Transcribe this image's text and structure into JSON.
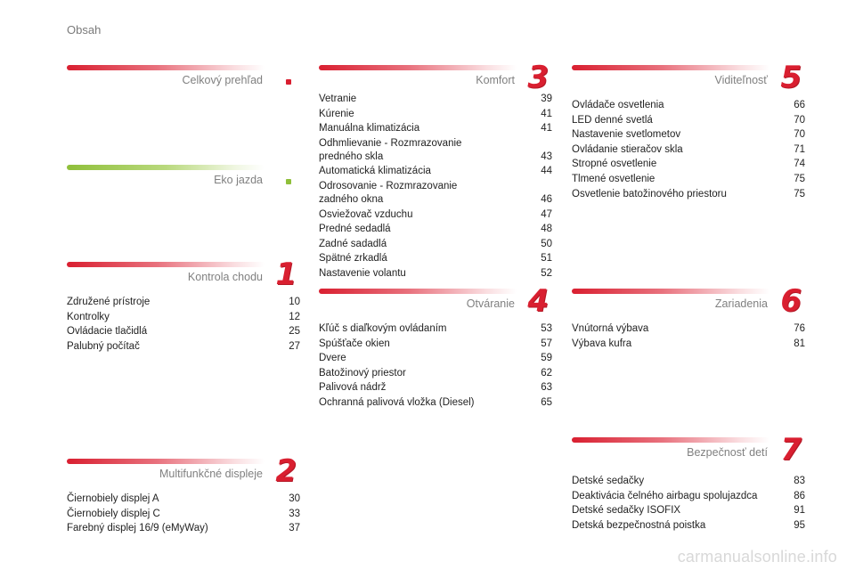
{
  "page_title": "Obsah",
  "watermark": "carmanualsonline.info",
  "colors": {
    "accent_red": "#d91f30",
    "accent_green": "#8fbf3a"
  },
  "sections": {
    "celkovy": {
      "title": "Celkový prehľad",
      "number": "",
      "entries": []
    },
    "eko": {
      "title": "Eko jazda",
      "number": "",
      "entries": []
    },
    "kontrola": {
      "title": "Kontrola chodu",
      "number": "1",
      "entries": [
        {
          "label": "Združené prístroje",
          "page": "10"
        },
        {
          "label": "Kontrolky",
          "page": "12"
        },
        {
          "label": "Ovládacie tlačidlá",
          "page": "25"
        },
        {
          "label": "Palubný počítač",
          "page": "27"
        }
      ]
    },
    "multifunkcne": {
      "title": "Multifunkčné displeje",
      "number": "2",
      "entries": [
        {
          "label": "Čiernobiely displej A",
          "page": "30"
        },
        {
          "label": "Čiernobiely displej C",
          "page": "33"
        },
        {
          "label": "Farebný displej 16/9 (eMyWay)",
          "page": "37"
        }
      ]
    },
    "komfort": {
      "title": "Komfort",
      "number": "3",
      "entries": [
        {
          "label": "Vetranie",
          "page": "39"
        },
        {
          "label": "Kúrenie",
          "page": "41"
        },
        {
          "label": "Manuálna klimatizácia",
          "page": "41"
        },
        {
          "label": "Odhmlievanie - Rozmrazovanie\n    predného skla",
          "page": "43"
        },
        {
          "label": "Automatická klimatizácia",
          "page": "44"
        },
        {
          "label": "Odrosovanie - Rozmrazovanie\n    zadného okna",
          "page": "46"
        },
        {
          "label": "Osviežovač vzduchu",
          "page": "47"
        },
        {
          "label": "Predné sedadlá",
          "page": "48"
        },
        {
          "label": "Zadné sadadlá",
          "page": "50"
        },
        {
          "label": "Spätné zrkadlá",
          "page": "51"
        },
        {
          "label": "Nastavenie volantu",
          "page": "52"
        }
      ]
    },
    "otvaranie": {
      "title": "Otváranie",
      "number": "4",
      "entries": [
        {
          "label": "Kľúč s diaľkovým ovládaním",
          "page": "53"
        },
        {
          "label": "Spúšťače okien",
          "page": "57"
        },
        {
          "label": "Dvere",
          "page": "59"
        },
        {
          "label": "Batožinový priestor",
          "page": "62"
        },
        {
          "label": "Palivová nádrž",
          "page": "63"
        },
        {
          "label": "Ochranná palivová vložka (Diesel)",
          "page": "65"
        }
      ]
    },
    "viditelnost": {
      "title": "Viditeľnosť",
      "number": "5",
      "entries": [
        {
          "label": "Ovládače osvetlenia",
          "page": "66"
        },
        {
          "label": "LED denné svetlá",
          "page": "70"
        },
        {
          "label": "Nastavenie svetlometov",
          "page": "70"
        },
        {
          "label": "Ovládanie stieračov skla",
          "page": "71"
        },
        {
          "label": "Stropné osvetlenie",
          "page": "74"
        },
        {
          "label": "Tlmené osvetlenie",
          "page": "75"
        },
        {
          "label": "Osvetlenie batožinového priestoru",
          "page": "75"
        }
      ]
    },
    "zariadenia": {
      "title": "Zariadenia",
      "number": "6",
      "entries": [
        {
          "label": "Vnútorná výbava",
          "page": "76"
        },
        {
          "label": "Výbava kufra",
          "page": "81"
        }
      ]
    },
    "bezpecnost": {
      "title": "Bezpečnosť detí",
      "number": "7",
      "entries": [
        {
          "label": "Detské sedačky",
          "page": "83"
        },
        {
          "label": "Deaktivácia čelného airbagu spolujazdca",
          "page": "86"
        },
        {
          "label": "Detské sedačky ISOFIX",
          "page": "91"
        },
        {
          "label": "Detská bezpečnostná poistka",
          "page": "95"
        }
      ]
    }
  }
}
